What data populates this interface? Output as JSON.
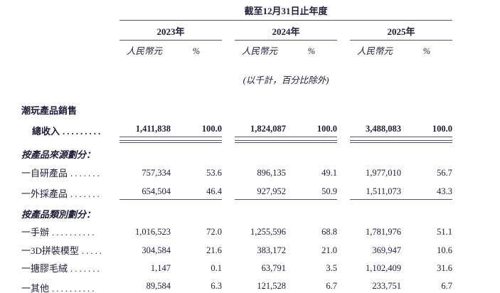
{
  "table": {
    "period_header": "截至12月31日止年度",
    "years": [
      {
        "label": "2023年"
      },
      {
        "label": "2024年"
      },
      {
        "label": "2025年"
      }
    ],
    "currency_header": "人民幣元",
    "percent_header": "%",
    "unit_note": "(以千計，百分比除外)",
    "section_title": "潮玩產品銷售",
    "rows": [
      {
        "label": "總收入",
        "dots": ".........",
        "values": [
          "1,411,838",
          "100.0",
          "1,824,087",
          "100.0",
          "3,488,083",
          "100.0"
        ]
      },
      {
        "label": "按產品來源劃分："
      },
      {
        "label": "一自研產品",
        "dots": ".......",
        "values": [
          "757,334",
          "53.6",
          "896,135",
          "49.1",
          "1,977,010",
          "56.7"
        ]
      },
      {
        "label": "一外採產品",
        "dots": ".......",
        "values": [
          "654,504",
          "46.4",
          "927,952",
          "50.9",
          "1,511,073",
          "43.3"
        ]
      },
      {
        "label": "按產品類別劃分："
      },
      {
        "label": "一手辦",
        "dots": "..........",
        "values": [
          "1,016,523",
          "72.0",
          "1,255,596",
          "68.8",
          "1,781,976",
          "51.1"
        ]
      },
      {
        "label": "一3D拼裝模型",
        "dots": ".....",
        "values": [
          "304,584",
          "21.6",
          "383,172",
          "21.0",
          "369,947",
          "10.6"
        ]
      },
      {
        "label": "一搪膠毛絨",
        "dots": ".......",
        "values": [
          "1,147",
          "0.1",
          "63,791",
          "3.5",
          "1,102,409",
          "31.6"
        ]
      },
      {
        "label": "一其他",
        "dots": "..........",
        "values": [
          "89,584",
          "6.3",
          "121,528",
          "6.7",
          "233,751",
          "6.7"
        ]
      }
    ]
  }
}
